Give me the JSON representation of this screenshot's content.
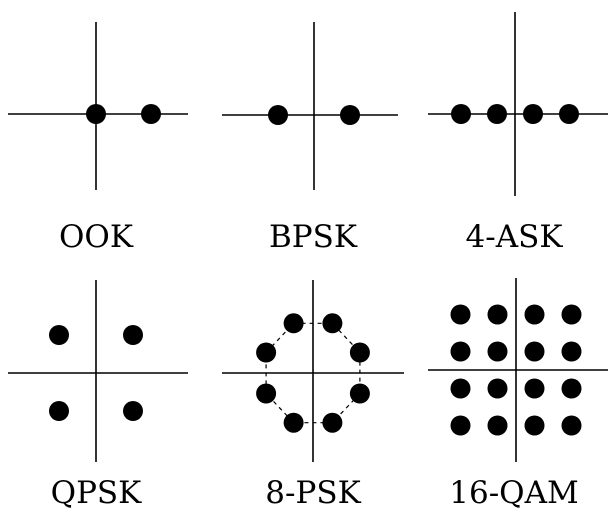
{
  "colors": {
    "ink": "#000000",
    "background": "#ffffff"
  },
  "constellations": [
    {
      "id": "ook",
      "label": "OOK",
      "points": [
        [
          0,
          0
        ],
        [
          1,
          0
        ]
      ]
    },
    {
      "id": "bpsk",
      "label": "BPSK",
      "points": [
        [
          -1,
          0
        ],
        [
          1,
          0
        ]
      ]
    },
    {
      "id": "4ask",
      "label": "4-ASK",
      "points": [
        [
          -3,
          0
        ],
        [
          -1,
          0
        ],
        [
          1,
          0
        ],
        [
          3,
          0
        ]
      ]
    },
    {
      "id": "qpsk",
      "label": "QPSK",
      "points": [
        [
          -1,
          1
        ],
        [
          1,
          1
        ],
        [
          -1,
          -1
        ],
        [
          1,
          -1
        ]
      ]
    },
    {
      "id": "8psk",
      "label": "8-PSK",
      "points": [
        [
          -0.38,
          0.92
        ],
        [
          0.38,
          0.92
        ],
        [
          0.92,
          0.38
        ],
        [
          0.92,
          -0.38
        ],
        [
          0.38,
          -0.92
        ],
        [
          -0.38,
          -0.92
        ],
        [
          -0.92,
          -0.38
        ],
        [
          -0.92,
          0.38
        ]
      ],
      "dashed_circle": true
    },
    {
      "id": "16qam",
      "label": "16-QAM",
      "points": [
        [
          -3,
          3
        ],
        [
          -1,
          3
        ],
        [
          1,
          3
        ],
        [
          3,
          3
        ],
        [
          -3,
          1
        ],
        [
          -1,
          1
        ],
        [
          1,
          1
        ],
        [
          3,
          1
        ],
        [
          -3,
          -1
        ],
        [
          -1,
          -1
        ],
        [
          1,
          -1
        ],
        [
          3,
          -1
        ],
        [
          -3,
          -3
        ],
        [
          -1,
          -3
        ],
        [
          1,
          -3
        ],
        [
          3,
          -3
        ]
      ]
    }
  ]
}
